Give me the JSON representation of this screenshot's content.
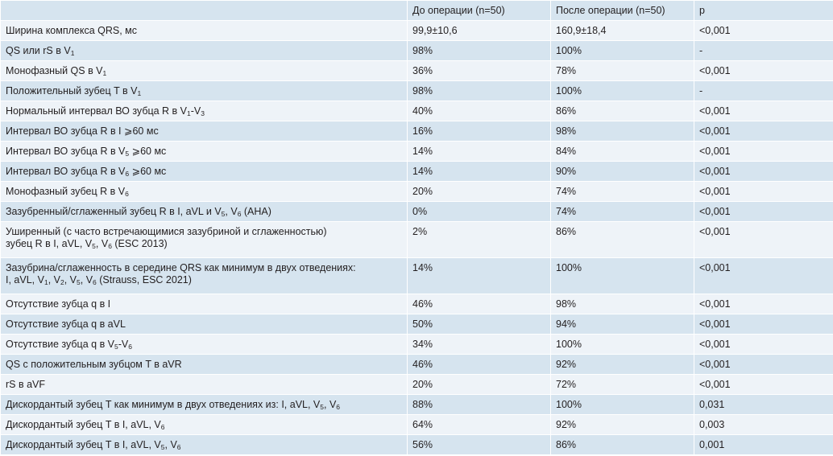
{
  "table": {
    "headers": [
      "",
      "До операции (n=50)",
      "После операции (n=50)",
      "p"
    ],
    "rows": [
      {
        "label": [
          {
            "t": "Ширина комплекса QRS, мс"
          }
        ],
        "before": "99,9±10,6",
        "after": "160,9±18,4",
        "p": "<0,001"
      },
      {
        "label": [
          {
            "t": "QS или rS в V"
          },
          {
            "sub": "1"
          }
        ],
        "before": "98%",
        "after": "100%",
        "p": "-"
      },
      {
        "label": [
          {
            "t": "Монофазный QS в V"
          },
          {
            "sub": "1"
          }
        ],
        "before": "36%",
        "after": "78%",
        "p": "<0,001"
      },
      {
        "label": [
          {
            "t": "Положительный зубец T в V"
          },
          {
            "sub": "1"
          }
        ],
        "before": "98%",
        "after": "100%",
        "p": "-"
      },
      {
        "label": [
          {
            "t": "Нормальный интервал ВО зубца R в V"
          },
          {
            "sub": "1"
          },
          {
            "t": "-V"
          },
          {
            "sub": "3"
          }
        ],
        "before": "40%",
        "after": "86%",
        "p": "<0,001"
      },
      {
        "label": [
          {
            "t": "Интервал ВО зубца R в I ⩾60 мс"
          }
        ],
        "before": "16%",
        "after": "98%",
        "p": "<0,001"
      },
      {
        "label": [
          {
            "t": "Интервал ВО зубца R в V"
          },
          {
            "sub": "5"
          },
          {
            "t": " ⩾60 мс"
          }
        ],
        "before": "14%",
        "after": "84%",
        "p": "<0,001"
      },
      {
        "label": [
          {
            "t": "Интервал ВО зубца R в V"
          },
          {
            "sub": "6"
          },
          {
            "t": " ⩾60 мс"
          }
        ],
        "before": "14%",
        "after": "90%",
        "p": "<0,001"
      },
      {
        "label": [
          {
            "t": "Монофазный зубец R в V"
          },
          {
            "sub": "6"
          }
        ],
        "before": "20%",
        "after": "74%",
        "p": "<0,001"
      },
      {
        "label": [
          {
            "t": "Зазубренный/сглаженный зубец R в I, aVL и V"
          },
          {
            "sub": "5"
          },
          {
            "t": ", V"
          },
          {
            "sub": "6"
          },
          {
            "t": " (AHA)"
          }
        ],
        "before": "0%",
        "after": "74%",
        "p": "<0,001"
      },
      {
        "label": [
          {
            "t": "Уширенный (с часто встречающимися зазубриной и сглаженностью)"
          },
          {
            "br": true
          },
          {
            "t": "зубец R в I, aVL, V"
          },
          {
            "sub": "5"
          },
          {
            "t": ", V"
          },
          {
            "sub": "6"
          },
          {
            "t": " (ESC 2013)"
          }
        ],
        "before": "2%",
        "after": "86%",
        "p": "<0,001"
      },
      {
        "label": [
          {
            "t": "Зазубрина/сглаженность в середине QRS как минимум в двух отведениях:"
          },
          {
            "br": true
          },
          {
            "t": "I, aVL, V"
          },
          {
            "sub": "1"
          },
          {
            "t": ", V"
          },
          {
            "sub": "2"
          },
          {
            "t": ", V"
          },
          {
            "sub": "5"
          },
          {
            "t": ", V"
          },
          {
            "sub": "6"
          },
          {
            "t": " (Strauss, ESC 2021)"
          }
        ],
        "before": "14%",
        "after": "100%",
        "p": "<0,001"
      },
      {
        "label": [
          {
            "t": "Отсутствие зубца q в I"
          }
        ],
        "before": "46%",
        "after": "98%",
        "p": "<0,001"
      },
      {
        "label": [
          {
            "t": "Отсутствие зубца q в aVL"
          }
        ],
        "before": "50%",
        "after": "94%",
        "p": "<0,001"
      },
      {
        "label": [
          {
            "t": "Отсутствие зубца q в V"
          },
          {
            "sub": "5"
          },
          {
            "t": "-V"
          },
          {
            "sub": "6"
          }
        ],
        "before": "34%",
        "after": "100%",
        "p": "<0,001"
      },
      {
        "label": [
          {
            "t": "QS с положительным зубцом T в aVR"
          }
        ],
        "before": "46%",
        "after": "92%",
        "p": "<0,001"
      },
      {
        "label": [
          {
            "t": "rS в aVF"
          }
        ],
        "before": "20%",
        "after": "72%",
        "p": "<0,001"
      },
      {
        "label": [
          {
            "t": "Дискордантый зубец T как минимум в двух отведениях из: I, aVL, V"
          },
          {
            "sub": "5"
          },
          {
            "t": ", V"
          },
          {
            "sub": "6"
          }
        ],
        "before": "88%",
        "after": "100%",
        "p": "0,031"
      },
      {
        "label": [
          {
            "t": "Дискордантый зубец T в I, aVL, V"
          },
          {
            "sub": "6"
          }
        ],
        "before": "64%",
        "after": "92%",
        "p": "0,003"
      },
      {
        "label": [
          {
            "t": "Дискордантый зубец T в I, aVL, V"
          },
          {
            "sub": "5"
          },
          {
            "t": ", V"
          },
          {
            "sub": "6"
          }
        ],
        "before": "56%",
        "after": "86%",
        "p": "0,001"
      }
    ]
  },
  "colors": {
    "row_dark": "#d6e4ef",
    "row_light": "#eef3f8",
    "text": "#231f20",
    "grid": "#ffffff"
  }
}
